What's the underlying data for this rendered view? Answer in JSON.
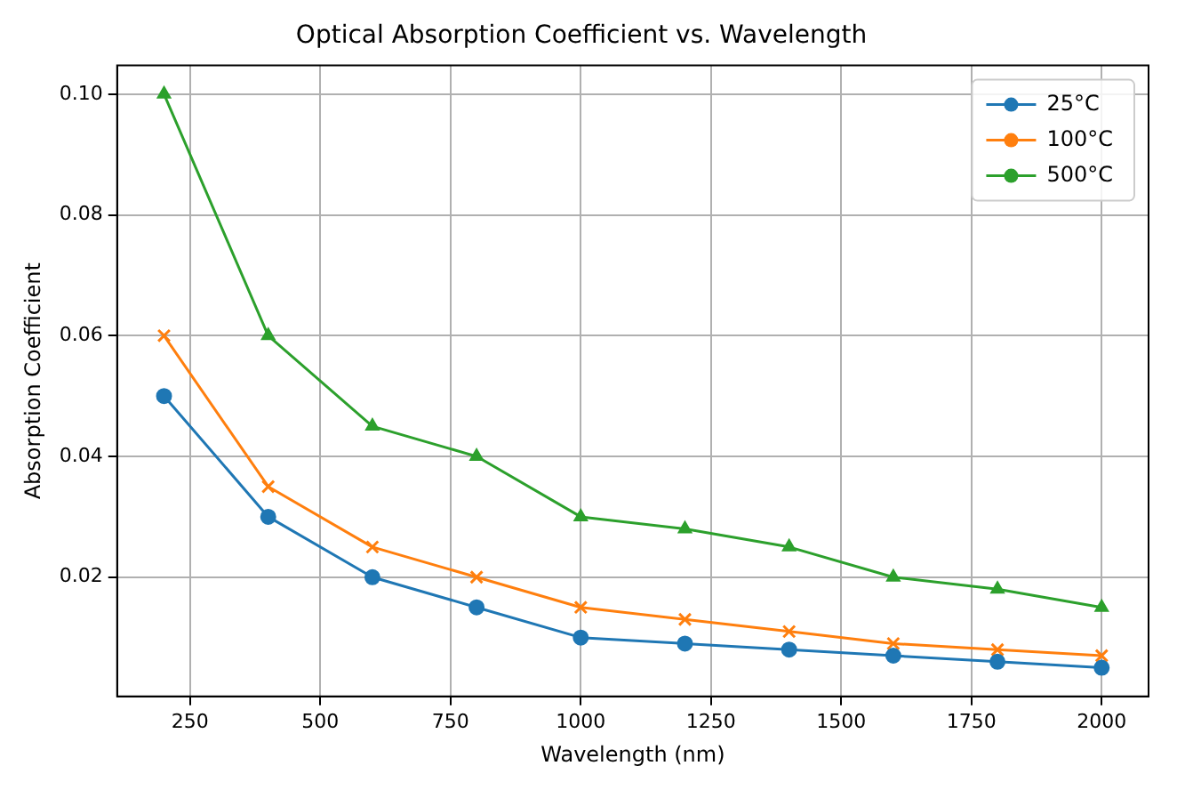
{
  "chart_data": {
    "type": "line",
    "title": "Optical Absorption Coefficient vs. Wavelength",
    "xlabel": "Wavelength (nm)",
    "ylabel": "Absorption Coefficient",
    "x": [
      200,
      400,
      600,
      800,
      1000,
      1200,
      1400,
      1600,
      1800,
      2000
    ],
    "series": [
      {
        "name": "25°C",
        "color": "#1f77b4",
        "marker": "circle",
        "values": [
          0.05,
          0.03,
          0.02,
          0.015,
          0.01,
          0.009,
          0.008,
          0.007,
          0.006,
          0.005
        ]
      },
      {
        "name": "100°C",
        "color": "#ff7f0e",
        "marker": "cross",
        "values": [
          0.06,
          0.035,
          0.025,
          0.02,
          0.015,
          0.013,
          0.011,
          0.009,
          0.008,
          0.007
        ]
      },
      {
        "name": "500°C",
        "color": "#2ca02c",
        "marker": "triangle",
        "values": [
          0.1,
          0.06,
          0.045,
          0.04,
          0.03,
          0.028,
          0.025,
          0.02,
          0.018,
          0.015
        ]
      }
    ],
    "xlim": [
      110,
      2090
    ],
    "xticks": [
      250,
      500,
      750,
      1000,
      1250,
      1500,
      1750,
      2000
    ],
    "ylim": [
      0.00025,
      0.10475
    ],
    "yticks": [
      0.02,
      0.04,
      0.06,
      0.08,
      {
        "value": 0.1,
        "label": "0.10"
      }
    ],
    "grid": true,
    "legend": "top right",
    "line_style": "solid"
  }
}
